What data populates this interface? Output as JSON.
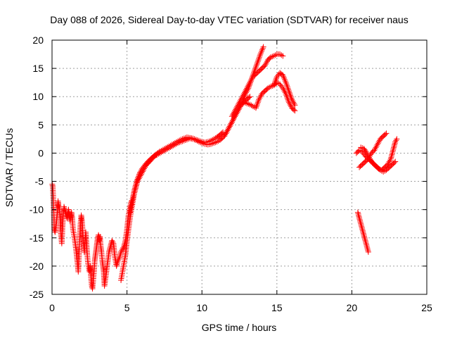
{
  "chart_data": {
    "type": "scatter",
    "title": "Day 088 of 2026, Sidereal Day-to-day VTEC variation (SDTVAR) for receiver naus",
    "xlabel": "GPS time / hours",
    "ylabel": "SDTVAR / TECUs",
    "xlim": [
      0,
      25
    ],
    "ylim": [
      -25,
      20
    ],
    "xticks": [
      0,
      5,
      10,
      15,
      20,
      25
    ],
    "yticks": [
      -25,
      -20,
      -15,
      -10,
      -5,
      0,
      5,
      10,
      15,
      20
    ],
    "grid": true,
    "marker": "+",
    "marker_color": "#ff0000",
    "series": [
      {
        "name": "SDTVAR",
        "segments": [
          [
            [
              0.02,
              -5.5
            ],
            [
              0.05,
              -6.0
            ],
            [
              0.1,
              -9.0
            ],
            [
              0.15,
              -13.5
            ],
            [
              0.2,
              -14.0
            ],
            [
              0.3,
              -12.0
            ],
            [
              0.35,
              -10.5
            ],
            [
              0.4,
              -8.5
            ],
            [
              0.45,
              -9.5
            ],
            [
              0.5,
              -10.0
            ],
            [
              0.55,
              -12.0
            ],
            [
              0.6,
              -14.5
            ],
            [
              0.65,
              -16.0
            ],
            [
              0.7,
              -13.0
            ],
            [
              0.75,
              -11.0
            ],
            [
              0.8,
              -9.5
            ],
            [
              0.9,
              -10.5
            ],
            [
              1.0,
              -11.5
            ],
            [
              1.1,
              -10.0
            ],
            [
              1.2,
              -12.0
            ],
            [
              1.3,
              -10.5
            ],
            [
              1.35,
              -11.5
            ],
            [
              1.4,
              -13.5
            ],
            [
              1.5,
              -15.0
            ],
            [
              1.6,
              -17.0
            ],
            [
              1.7,
              -19.5
            ],
            [
              1.75,
              -21.0
            ],
            [
              1.8,
              -18.0
            ],
            [
              1.85,
              -15.0
            ],
            [
              1.9,
              -12.5
            ],
            [
              1.95,
              -11.0
            ],
            [
              2.0,
              -12.0
            ],
            [
              2.05,
              -14.0
            ],
            [
              2.1,
              -16.0
            ],
            [
              2.15,
              -17.5
            ],
            [
              2.2,
              -15.5
            ],
            [
              2.25,
              -14.0
            ],
            [
              2.3,
              -16.0
            ],
            [
              2.35,
              -18.0
            ],
            [
              2.4,
              -19.5
            ],
            [
              2.5,
              -21.0
            ],
            [
              2.55,
              -20.0
            ],
            [
              2.6,
              -22.0
            ],
            [
              2.65,
              -23.5
            ],
            [
              2.7,
              -24.0
            ],
            [
              2.75,
              -22.5
            ],
            [
              2.8,
              -21.0
            ],
            [
              2.85,
              -19.0
            ],
            [
              2.9,
              -18.0
            ],
            [
              2.95,
              -17.0
            ],
            [
              3.0,
              -16.0
            ],
            [
              3.05,
              -15.0
            ],
            [
              3.1,
              -14.5
            ],
            [
              3.15,
              -15.5
            ],
            [
              3.2,
              -14.8
            ],
            [
              3.25,
              -16.5
            ],
            [
              3.3,
              -17.5
            ],
            [
              3.35,
              -19.0
            ],
            [
              3.4,
              -20.0
            ],
            [
              3.45,
              -21.0
            ],
            [
              3.5,
              -23.5
            ],
            [
              3.6,
              -21.5
            ],
            [
              3.7,
              -19.5
            ],
            [
              3.8,
              -17.5
            ],
            [
              3.9,
              -16.5
            ],
            [
              4.0,
              -15.5
            ],
            [
              4.1,
              -16.0
            ],
            [
              4.2,
              -18.5
            ],
            [
              4.3,
              -20.0
            ],
            [
              4.4,
              -19.0
            ],
            [
              4.5,
              -18.5
            ],
            [
              4.6,
              -17.5
            ],
            [
              4.7,
              -17.0
            ],
            [
              4.8,
              -16.5
            ],
            [
              4.9,
              -15.5
            ],
            [
              5.0,
              -13.5
            ],
            [
              5.1,
              -11.0
            ],
            [
              5.2,
              -9.5
            ],
            [
              5.3,
              -8.5
            ]
          ],
          [
            [
              4.6,
              -22.5
            ],
            [
              4.7,
              -21.0
            ],
            [
              4.8,
              -19.5
            ],
            [
              4.9,
              -18.0
            ],
            [
              5.0,
              -15.5
            ],
            [
              5.1,
              -13.5
            ],
            [
              5.2,
              -11.5
            ],
            [
              5.3,
              -10.0
            ],
            [
              5.4,
              -8.5
            ],
            [
              5.5,
              -7.0
            ],
            [
              5.6,
              -6.0
            ],
            [
              5.7,
              -5.0
            ],
            [
              5.8,
              -4.5
            ],
            [
              5.9,
              -4.0
            ],
            [
              6.0,
              -3.5
            ],
            [
              6.1,
              -3.0
            ],
            [
              6.2,
              -2.5
            ],
            [
              6.3,
              -2.0
            ],
            [
              6.4,
              -1.8
            ],
            [
              6.5,
              -1.5
            ],
            [
              6.6,
              -1.2
            ],
            [
              6.7,
              -0.9
            ],
            [
              6.8,
              -0.6
            ],
            [
              6.9,
              -0.4
            ],
            [
              7.0,
              -0.3
            ],
            [
              7.2,
              0.0
            ],
            [
              7.4,
              0.3
            ],
            [
              7.6,
              0.6
            ],
            [
              7.8,
              0.9
            ],
            [
              8.0,
              1.2
            ],
            [
              8.2,
              1.5
            ],
            [
              8.4,
              1.8
            ],
            [
              8.6,
              2.0
            ],
            [
              8.8,
              2.2
            ],
            [
              9.0,
              2.4
            ],
            [
              9.2,
              2.6
            ],
            [
              9.4,
              2.5
            ],
            [
              9.6,
              2.3
            ],
            [
              9.8,
              2.0
            ],
            [
              10.0,
              1.8
            ],
            [
              10.2,
              1.6
            ],
            [
              10.4,
              1.5
            ],
            [
              10.6,
              1.6
            ],
            [
              10.8,
              1.8
            ],
            [
              11.0,
              2.0
            ],
            [
              11.2,
              2.3
            ],
            [
              11.4,
              2.8
            ],
            [
              11.6,
              3.5
            ],
            [
              11.8,
              4.5
            ],
            [
              12.0,
              5.5
            ],
            [
              12.2,
              6.5
            ],
            [
              12.4,
              7.5
            ],
            [
              12.6,
              8.5
            ],
            [
              12.8,
              9.0
            ],
            [
              13.0,
              9.5
            ],
            [
              13.2,
              10.0
            ]
          ],
          [
            [
              5.2,
              -10.5
            ],
            [
              5.3,
              -9.0
            ],
            [
              5.4,
              -7.8
            ],
            [
              5.5,
              -6.5
            ],
            [
              5.6,
              -5.5
            ],
            [
              5.7,
              -4.6
            ],
            [
              5.8,
              -3.9
            ],
            [
              5.9,
              -3.3
            ],
            [
              6.0,
              -2.8
            ],
            [
              6.2,
              -2.1
            ],
            [
              6.4,
              -1.5
            ],
            [
              6.6,
              -1.0
            ],
            [
              6.8,
              -0.5
            ],
            [
              7.0,
              -0.1
            ],
            [
              7.2,
              0.3
            ],
            [
              7.4,
              0.6
            ],
            [
              7.6,
              0.9
            ],
            [
              7.8,
              1.2
            ],
            [
              8.0,
              1.5
            ],
            [
              8.2,
              1.8
            ],
            [
              8.4,
              2.1
            ],
            [
              8.6,
              2.4
            ],
            [
              8.8,
              2.6
            ],
            [
              9.0,
              2.8
            ],
            [
              9.2,
              2.7
            ],
            [
              9.4,
              2.6
            ],
            [
              9.6,
              2.4
            ],
            [
              9.8,
              2.2
            ],
            [
              10.0,
              2.0
            ],
            [
              10.2,
              1.9
            ],
            [
              10.4,
              2.0
            ],
            [
              10.6,
              2.2
            ],
            [
              10.8,
              2.5
            ],
            [
              11.0,
              2.8
            ],
            [
              11.2,
              3.2
            ],
            [
              11.4,
              3.7
            ]
          ],
          [
            [
              11.5,
              3.0
            ],
            [
              11.7,
              4.0
            ],
            [
              11.9,
              5.0
            ],
            [
              12.1,
              6.0
            ],
            [
              12.3,
              7.0
            ],
            [
              12.5,
              8.0
            ],
            [
              12.7,
              9.0
            ],
            [
              12.9,
              10.5
            ],
            [
              13.1,
              11.5
            ],
            [
              13.3,
              13.0
            ],
            [
              13.5,
              14.5
            ],
            [
              13.7,
              16.0
            ],
            [
              13.9,
              17.5
            ],
            [
              14.1,
              18.8
            ]
          ],
          [
            [
              12.0,
              6.5
            ],
            [
              12.2,
              7.5
            ],
            [
              12.4,
              8.5
            ],
            [
              12.6,
              9.5
            ],
            [
              12.8,
              10.5
            ],
            [
              13.0,
              11.5
            ],
            [
              13.2,
              12.5
            ],
            [
              13.4,
              13.5
            ],
            [
              13.6,
              14.0
            ],
            [
              13.8,
              14.5
            ],
            [
              14.0,
              15.0
            ],
            [
              14.2,
              15.5
            ],
            [
              14.4,
              16.5
            ],
            [
              14.6,
              17.0
            ],
            [
              14.8,
              17.2
            ],
            [
              15.0,
              17.5
            ],
            [
              15.2,
              17.5
            ],
            [
              15.4,
              17.2
            ]
          ],
          [
            [
              12.8,
              9.0
            ],
            [
              13.0,
              8.8
            ],
            [
              13.2,
              8.6
            ],
            [
              13.4,
              8.3
            ],
            [
              13.6,
              8.0
            ],
            [
              13.8,
              9.5
            ],
            [
              14.0,
              10.5
            ],
            [
              14.2,
              11.0
            ],
            [
              14.4,
              11.5
            ],
            [
              14.6,
              11.8
            ],
            [
              14.8,
              12.0
            ],
            [
              15.0,
              12.5
            ],
            [
              15.2,
              12.2
            ],
            [
              15.4,
              11.5
            ],
            [
              15.6,
              10.5
            ],
            [
              15.8,
              9.0
            ],
            [
              16.0,
              8.0
            ],
            [
              16.2,
              7.5
            ]
          ],
          [
            [
              14.8,
              12.0
            ],
            [
              15.0,
              13.5
            ],
            [
              15.2,
              14.2
            ],
            [
              15.4,
              13.8
            ],
            [
              15.6,
              12.5
            ],
            [
              15.8,
              11.0
            ],
            [
              16.0,
              9.5
            ],
            [
              16.2,
              8.5
            ]
          ],
          [
            [
              20.4,
              -10.5
            ],
            [
              20.5,
              -11.5
            ],
            [
              20.6,
              -12.5
            ],
            [
              20.7,
              -13.5
            ],
            [
              20.8,
              -14.5
            ],
            [
              20.9,
              -15.5
            ],
            [
              21.0,
              -16.5
            ],
            [
              21.1,
              -17.5
            ]
          ],
          [
            [
              20.3,
              0.0
            ],
            [
              20.5,
              0.5
            ],
            [
              20.7,
              0.2
            ],
            [
              20.9,
              -0.5
            ],
            [
              21.1,
              -1.0
            ],
            [
              21.3,
              -1.5
            ],
            [
              21.5,
              -2.0
            ],
            [
              21.7,
              -2.5
            ],
            [
              21.9,
              -3.0
            ],
            [
              22.1,
              -3.3
            ],
            [
              22.3,
              -3.0
            ],
            [
              22.5,
              -2.5
            ],
            [
              22.7,
              -2.0
            ],
            [
              22.9,
              -1.5
            ]
          ],
          [
            [
              20.5,
              -2.5
            ],
            [
              20.7,
              -2.0
            ],
            [
              20.9,
              -1.5
            ],
            [
              21.1,
              -1.0
            ],
            [
              21.3,
              0.0
            ],
            [
              21.5,
              0.5
            ],
            [
              21.7,
              1.5
            ],
            [
              21.9,
              2.5
            ],
            [
              22.1,
              3.0
            ],
            [
              22.3,
              3.5
            ]
          ],
          [
            [
              20.6,
              1.0
            ],
            [
              20.8,
              0.8
            ],
            [
              21.0,
              0.0
            ],
            [
              21.2,
              -1.0
            ],
            [
              21.4,
              -1.8
            ],
            [
              21.6,
              -2.3
            ],
            [
              21.8,
              -2.8
            ],
            [
              22.0,
              -3.0
            ],
            [
              22.2,
              -2.5
            ],
            [
              22.4,
              -2.0
            ],
            [
              22.6,
              -1.0
            ],
            [
              22.7,
              0.0
            ],
            [
              22.8,
              1.0
            ],
            [
              22.9,
              2.0
            ],
            [
              23.0,
              2.5
            ]
          ]
        ]
      }
    ]
  }
}
